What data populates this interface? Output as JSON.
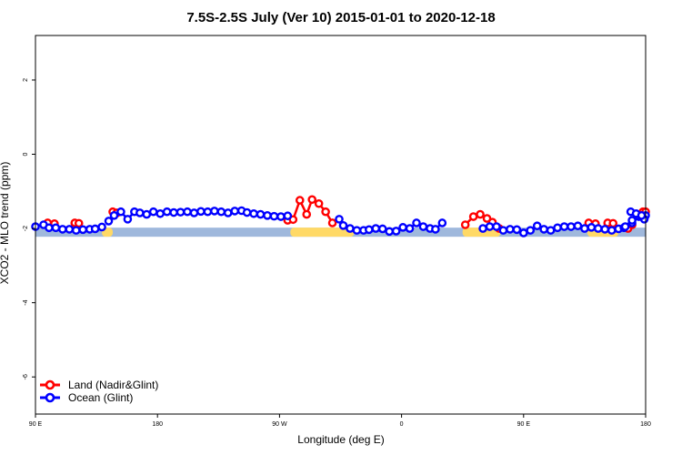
{
  "chart_data": {
    "type": "line",
    "title": "7.5S-2.5S July (Ver 10)   2015-01-01 to 2020-12-18",
    "xlabel": "Longitude (deg E)",
    "ylabel": "XCO2 - MLO trend (ppm)",
    "x_ticks": [
      {
        "value": 90,
        "label": "90 E"
      },
      {
        "value": 180,
        "label": "180"
      },
      {
        "value": 270,
        "label": "90 W"
      },
      {
        "value": 360,
        "label": "0"
      },
      {
        "value": 450,
        "label": "90 E"
      },
      {
        "value": 540,
        "label": "180"
      }
    ],
    "y_ticks": [
      {
        "value": 2,
        "label": "2"
      },
      {
        "value": 0,
        "label": "0"
      },
      {
        "value": -2,
        "label": "-2"
      },
      {
        "value": -4,
        "label": "-4"
      },
      {
        "value": -6,
        "label": "-6"
      }
    ],
    "xlim": [
      90,
      540
    ],
    "ylim": [
      -7,
      3.2
    ],
    "colors": {
      "land": "#ff0000",
      "ocean": "#0000ff",
      "land_band": "#ffd966",
      "ocean_band": "#9fb8dc"
    },
    "background_bands": {
      "y_center": -2.1,
      "ocean_span": [
        90,
        540
      ],
      "land_spans": [
        [
          139,
          147
        ],
        [
          278,
          325
        ],
        [
          405,
          433
        ],
        [
          497,
          520
        ]
      ]
    },
    "series": [
      {
        "name": "Land (Nadir&Glint)",
        "color": "#ff0000",
        "segments": [
          {
            "x": [
              99,
              104
            ],
            "y": [
              -1.85,
              -1.87
            ]
          },
          {
            "x": [
              119,
              122
            ],
            "y": [
              -1.85,
              -1.86
            ]
          },
          {
            "x": [
              147,
              150
            ],
            "y": [
              -1.55,
              -1.58
            ]
          },
          {
            "x": [
              276,
              280,
              285,
              290,
              294,
              299,
              304,
              309
            ],
            "y": [
              -1.78,
              -1.76,
              -1.24,
              -1.62,
              -1.22,
              -1.33,
              -1.55,
              -1.85
            ]
          },
          {
            "x": [
              407,
              413,
              418,
              423,
              427,
              432
            ],
            "y": [
              -1.9,
              -1.68,
              -1.62,
              -1.73,
              -1.83,
              -2.0
            ]
          },
          {
            "x": [
              498,
              503
            ],
            "y": [
              -1.85,
              -1.87
            ]
          },
          {
            "x": [
              512,
              516
            ],
            "y": [
              -1.85,
              -1.86
            ]
          },
          {
            "x": [
              527,
              530
            ],
            "y": [
              -2.0,
              -1.9
            ]
          },
          {
            "x": [
              538,
              540
            ],
            "y": [
              -1.55,
              -1.55
            ]
          }
        ]
      },
      {
        "name": "Ocean (Glint)",
        "color": "#0000ff",
        "segments": [
          {
            "x": [
              90,
              96,
              100,
              105,
              110,
              115,
              120,
              125,
              130,
              134,
              139
            ],
            "y": [
              -1.95,
              -1.9,
              -1.98,
              -1.98,
              -2.02,
              -2.02,
              -2.05,
              -2.03,
              -2.02,
              -2.01,
              -1.96
            ]
          },
          {
            "x": [
              144,
              148,
              153,
              158,
              163,
              167,
              172,
              177,
              182,
              187,
              192,
              197,
              202,
              207,
              212,
              217,
              222,
              227,
              232,
              237,
              242,
              246,
              251,
              256,
              261,
              266,
              271,
              276
            ],
            "y": [
              -1.8,
              -1.65,
              -1.55,
              -1.75,
              -1.55,
              -1.58,
              -1.62,
              -1.55,
              -1.6,
              -1.55,
              -1.57,
              -1.56,
              -1.55,
              -1.58,
              -1.54,
              -1.55,
              -1.53,
              -1.55,
              -1.58,
              -1.53,
              -1.52,
              -1.57,
              -1.6,
              -1.62,
              -1.65,
              -1.67,
              -1.68,
              -1.66
            ]
          },
          {
            "x": [
              314,
              317,
              322,
              327,
              332,
              336,
              341,
              346,
              351,
              356,
              361,
              366,
              371,
              376,
              381,
              385,
              390
            ],
            "y": [
              -1.75,
              -1.92,
              -2.0,
              -2.05,
              -2.05,
              -2.03,
              -2.0,
              -2.01,
              -2.08,
              -2.07,
              -1.97,
              -2.0,
              -1.85,
              -1.95,
              -2.0,
              -2.02,
              -1.85
            ]
          },
          {
            "x": [
              420,
              425,
              430,
              435,
              440,
              445,
              450,
              455,
              460,
              465,
              470,
              475,
              480,
              485,
              490,
              495,
              500,
              505,
              510,
              515,
              520,
              524,
              530,
              535,
              540
            ],
            "y": [
              -2.0,
              -1.95,
              -1.95,
              -2.05,
              -2.02,
              -2.03,
              -2.12,
              -2.05,
              -1.93,
              -2.02,
              -2.05,
              -1.98,
              -1.95,
              -1.95,
              -1.93,
              -2.0,
              -1.97,
              -2.0,
              -2.02,
              -2.05,
              -2.01,
              -1.98,
              -1.85,
              -1.68,
              -1.65
            ]
          },
          {
            "x": [
              525,
              530,
              534,
              539
            ],
            "y": [
              -1.95,
              -1.78,
              -1.65,
              -1.75
            ]
          },
          {
            "x": [
              529,
              533,
              537
            ],
            "y": [
              -1.55,
              -1.6,
              -1.65
            ]
          }
        ]
      }
    ],
    "legend": {
      "position": "bottom-left",
      "entries": [
        "Land (Nadir&Glint)",
        "Ocean (Glint)"
      ]
    }
  }
}
